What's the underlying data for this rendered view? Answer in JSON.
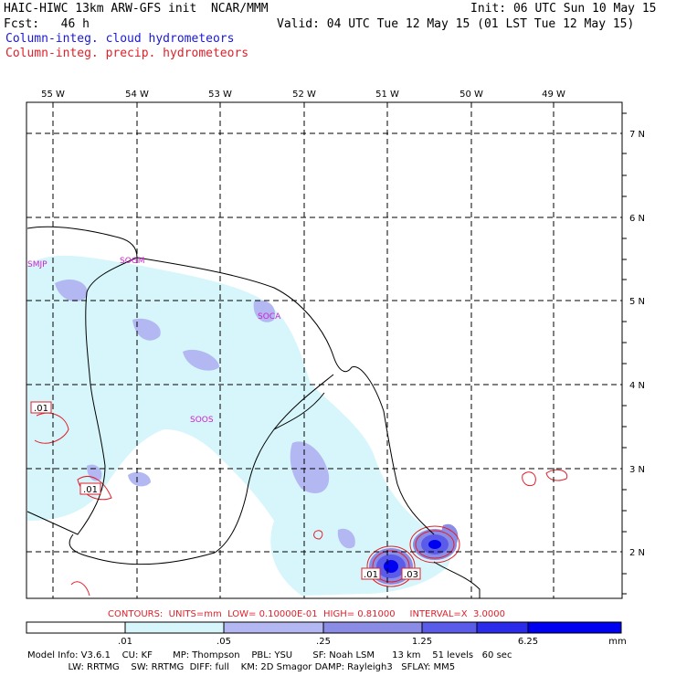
{
  "header": {
    "line1_left": "HAIC-HIWC 13km ARW-GFS init  NCAR/MMM",
    "line1_right": "Init: 06 UTC Sun 10 May 15",
    "line2_left": "Fcst:   46 h",
    "line2_right": "Valid: 04 UTC Tue 12 May 15 (01 LST Tue 12 May 15)",
    "field1": "Column-integ. cloud hydrometeors",
    "field2": "Column-integ. precip. hydrometeors"
  },
  "map": {
    "lon_labels": [
      "55 W",
      "54 W",
      "53 W",
      "52 W",
      "51 W",
      "50 W",
      "49 W"
    ],
    "lat_labels": [
      "7 N",
      "6 N",
      "5 N",
      "4 N",
      "3 N",
      "2 N"
    ],
    "stations": [
      "SMJP",
      "SOGM",
      "SOCA",
      "SOOS"
    ],
    "contour_value_labels": [
      ".01",
      ".01",
      ".01",
      ".03"
    ]
  },
  "contour_info": {
    "text": "CONTOURS:  UNITS=mm  LOW= 0.10000E-01  HIGH= 0.81000     INTERVAL=X  3.0000"
  },
  "colorbar": {
    "tick_labels": [
      ".01",
      ".05",
      ".25",
      "1.25",
      "6.25",
      "mm"
    ],
    "colors": [
      "#ffffff",
      "#d6f6fb",
      "#b3b7f2",
      "#8a8ce6",
      "#5b5bea",
      "#2b2bea",
      "#0000f0"
    ]
  },
  "model_info": {
    "line1": "Model Info: V3.6.1    CU: KF       MP: Thompson    PBL: YSU       SF: Noah LSM      13 km    51 levels   60 sec",
    "line2": "              LW: RRTMG    SW: RRTMG  DIFF: full    KM: 2D Smagor DAMP: Rayleigh3   SFLAY: MM5"
  }
}
